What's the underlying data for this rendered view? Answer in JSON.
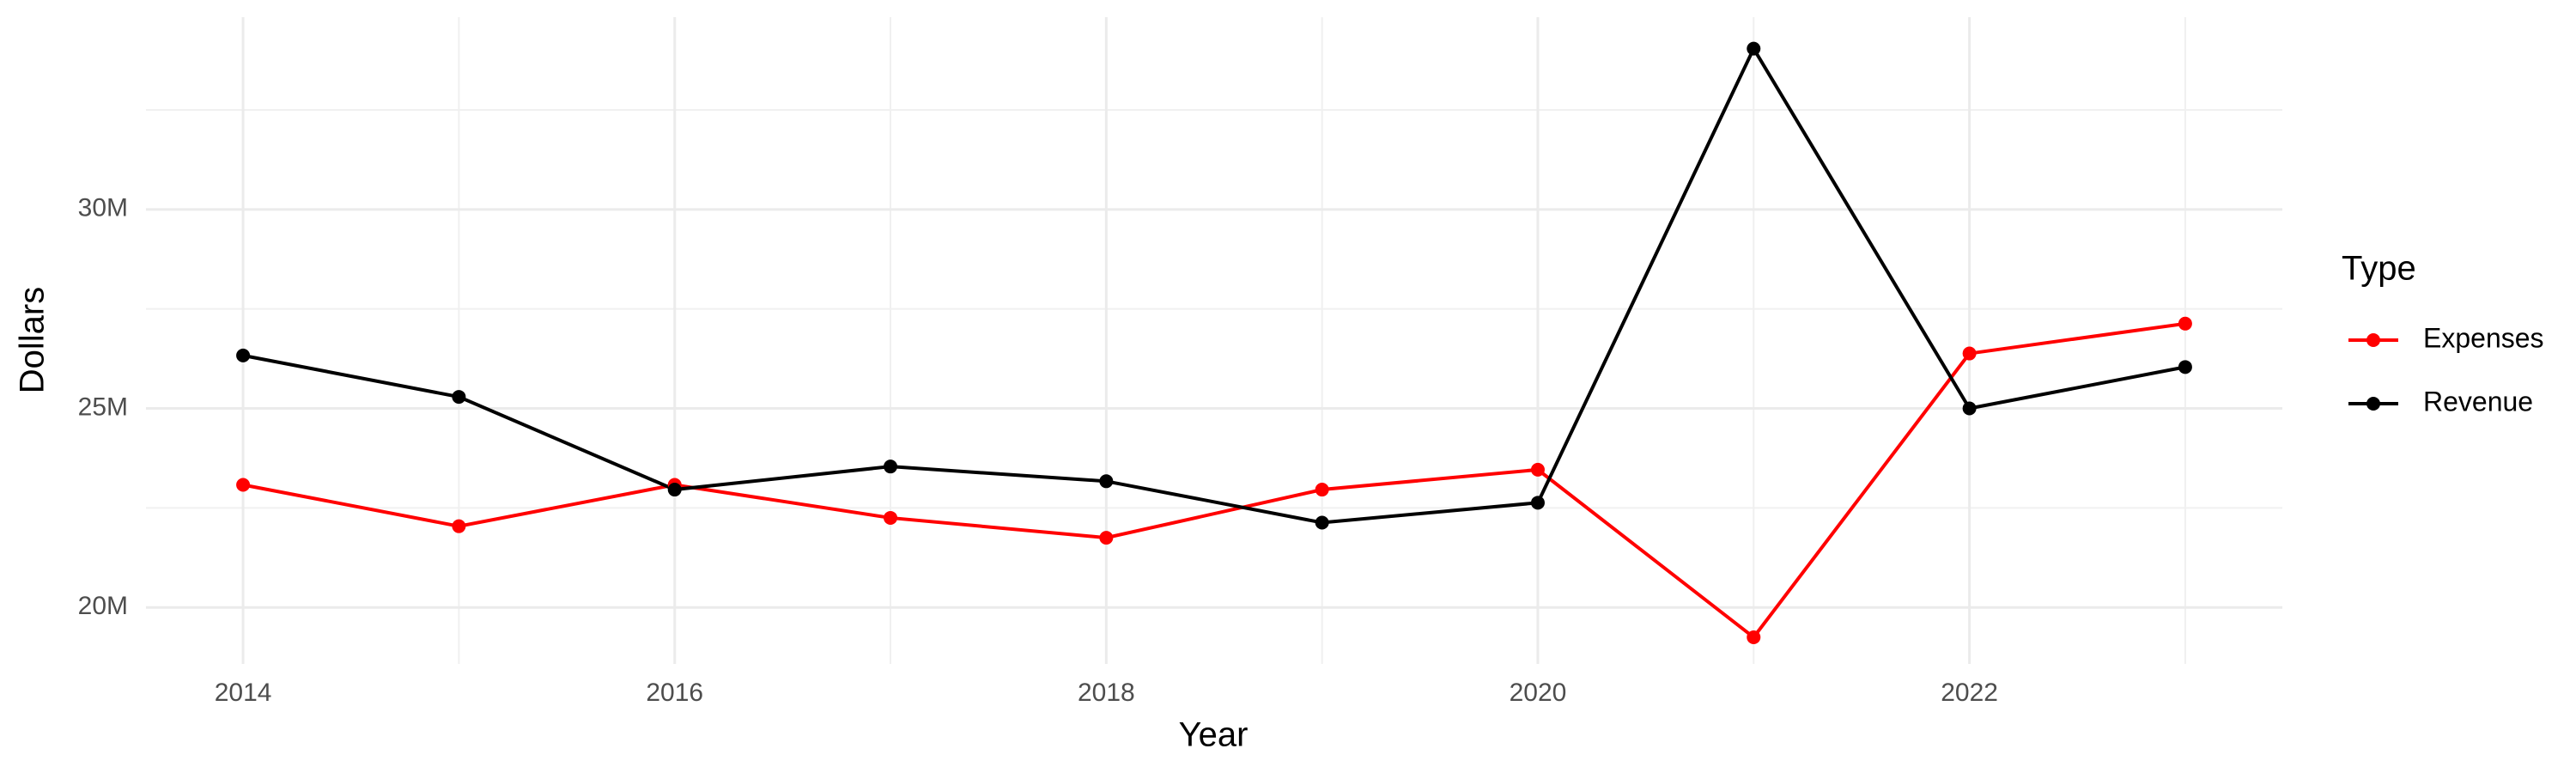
{
  "chart_data": {
    "type": "line",
    "x": [
      2014,
      2015,
      2016,
      2017,
      2018,
      2019,
      2020,
      2021,
      2022,
      2023
    ],
    "series": [
      {
        "name": "Expenses",
        "color": "#ff0000",
        "values": [
          23080000,
          22040000,
          23080000,
          22250000,
          21750000,
          22960000,
          23460000,
          19250000,
          26380000,
          27130000
        ]
      },
      {
        "name": "Revenue",
        "color": "#000000",
        "values": [
          26330000,
          25290000,
          22960000,
          23540000,
          23170000,
          22130000,
          22630000,
          34040000,
          25000000,
          26040000
        ]
      }
    ],
    "xlabel": "Year",
    "ylabel": "Dollars",
    "legend_title": "Type",
    "legend": "right",
    "xlim": [
      2013.55,
      2023.45
    ],
    "xticks": [
      2014,
      2016,
      2018,
      2020,
      2022
    ],
    "ylim": [
      18580000,
      34830000
    ],
    "yticks": [
      {
        "value": 20000000,
        "label": "20M"
      },
      {
        "value": 25000000,
        "label": "25M"
      },
      {
        "value": 30000000,
        "label": "30M"
      }
    ],
    "grid": true
  }
}
